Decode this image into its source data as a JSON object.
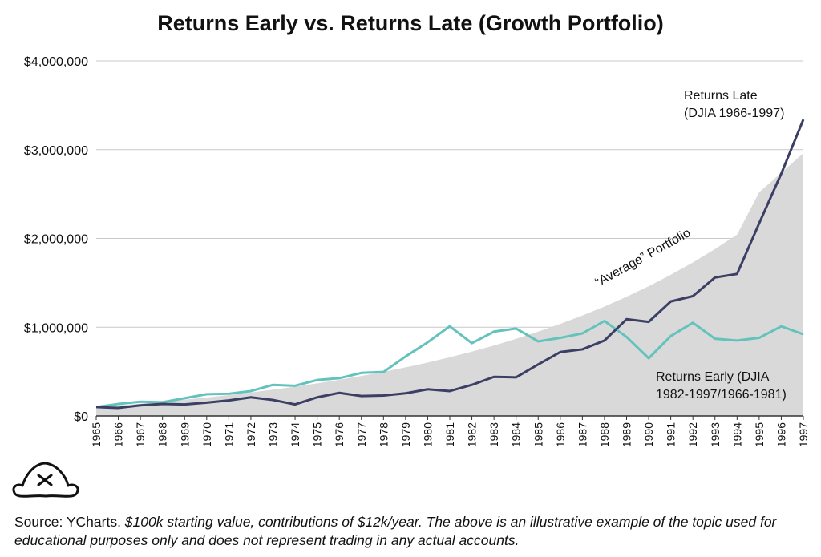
{
  "title": "Returns Early vs. Returns Late (Growth Portfolio)",
  "source": {
    "prefix": "Source: YCharts. ",
    "note": "$100k starting value, contributions of $12k/year. The above is an illustrative example of the topic used for educational purposes only and does not represent trading in any actual accounts."
  },
  "logo": {
    "icon": "pirate-hat-icon"
  },
  "colors": {
    "returns_late": "#3b3f63",
    "returns_early": "#64c2bd",
    "average_area": "#d9d9d9",
    "grid": "#c8c8c8",
    "text": "#111111"
  },
  "chart_data": {
    "type": "line",
    "title": "Returns Early vs. Returns Late (Growth Portfolio)",
    "ylim": [
      0,
      4000000
    ],
    "yticks": [
      0,
      1000000,
      2000000,
      3000000,
      4000000
    ],
    "ytick_labels": [
      "$0",
      "$1,000,000",
      "$2,000,000",
      "$3,000,000",
      "$4,000,000"
    ],
    "grid": "horizontal",
    "x": [
      "1965",
      "1966",
      "1967",
      "1968",
      "1969",
      "1970",
      "1971",
      "1972",
      "1973",
      "1974",
      "1975",
      "1976",
      "1977",
      "1978",
      "1979",
      "1980",
      "1981",
      "1982",
      "1983",
      "1984",
      "1985",
      "1986",
      "1987",
      "1988",
      "1989",
      "1990",
      "1991",
      "1992",
      "1993",
      "1994",
      "1995",
      "1996",
      "1997"
    ],
    "area": {
      "label": "“Average” Portfolio",
      "values": [
        100000,
        118000,
        138000,
        160000,
        183000,
        208000,
        235000,
        264000,
        296000,
        330000,
        367000,
        407000,
        450000,
        497000,
        547000,
        602000,
        661000,
        725000,
        794000,
        869000,
        950000,
        1037000,
        1131000,
        1233000,
        1343000,
        1462000,
        1590000,
        1729000,
        1880000,
        2043000,
        2519000,
        2740000,
        2960000
      ]
    },
    "series": [
      {
        "name": "Returns Late",
        "label_lines": [
          "Returns Late",
          "(DJIA 1966-1997)"
        ],
        "values": [
          100000,
          90000,
          120000,
          135000,
          130000,
          150000,
          175000,
          210000,
          180000,
          130000,
          210000,
          260000,
          225000,
          230000,
          255000,
          300000,
          280000,
          350000,
          440000,
          435000,
          580000,
          720000,
          750000,
          850000,
          1090000,
          1060000,
          1290000,
          1350000,
          1560000,
          1600000,
          2170000,
          2730000,
          3340000
        ]
      },
      {
        "name": "Returns Early",
        "label_lines": [
          "Returns Early (DJIA",
          "1982-1997/1966-1981)"
        ],
        "values": [
          100000,
          135000,
          160000,
          155000,
          200000,
          245000,
          250000,
          280000,
          350000,
          340000,
          405000,
          425000,
          485000,
          495000,
          670000,
          830000,
          1010000,
          820000,
          950000,
          985000,
          840000,
          880000,
          930000,
          1070000,
          890000,
          650000,
          900000,
          1050000,
          870000,
          850000,
          880000,
          1010000,
          920000
        ]
      }
    ]
  }
}
